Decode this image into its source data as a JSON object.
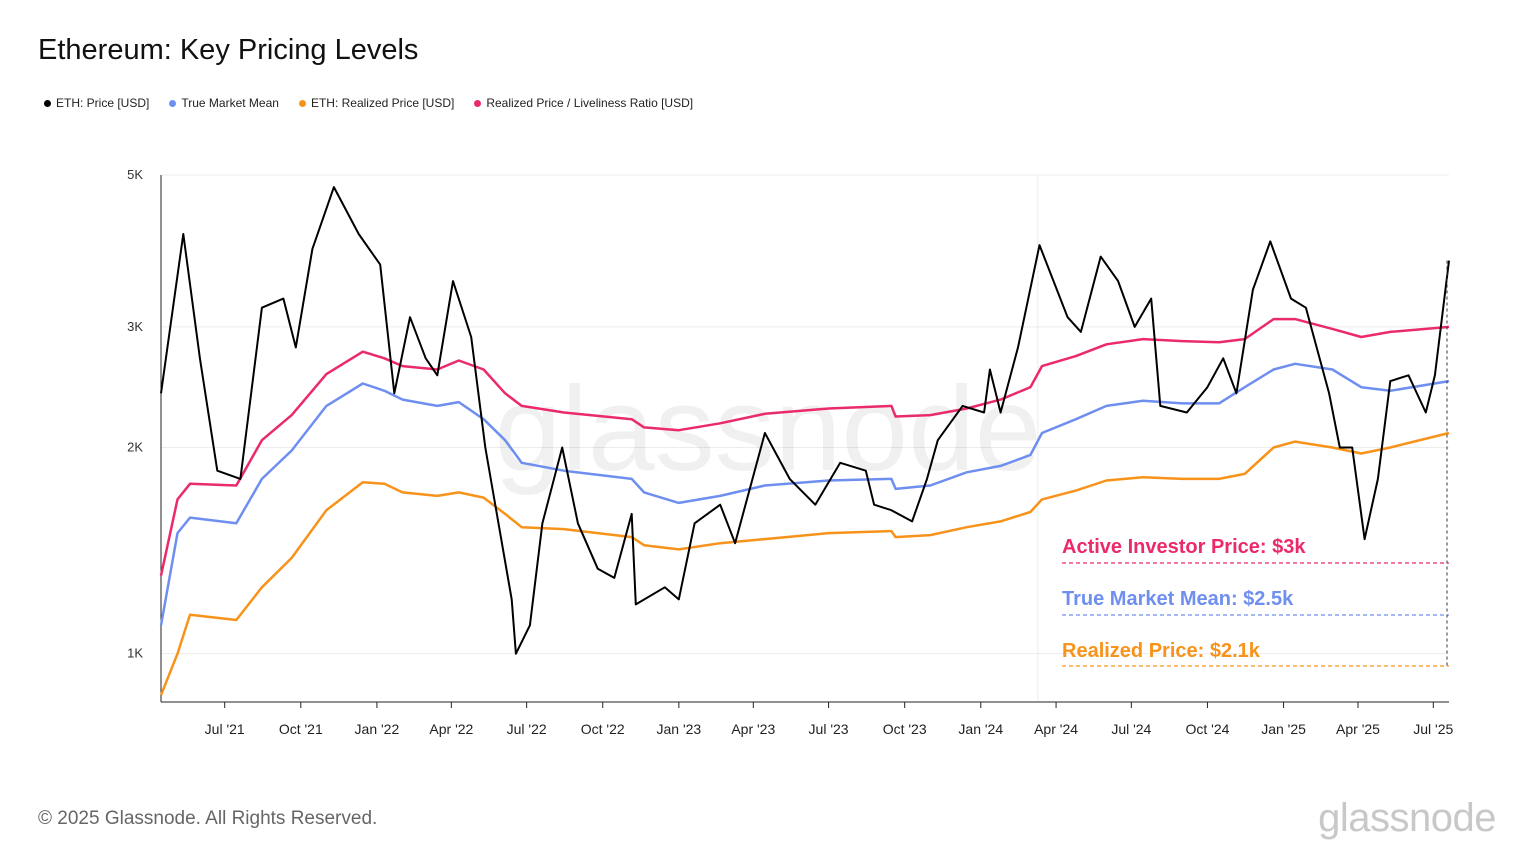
{
  "title": "Ethereum: Key Pricing Levels",
  "legend": [
    {
      "label": "ETH: Price [USD]",
      "color": "#000000"
    },
    {
      "label": "True Market Mean",
      "color": "#6f8ff0"
    },
    {
      "label": "ETH: Realized Price [USD]",
      "color": "#f7931a"
    },
    {
      "label": "Realized Price / Liveliness Ratio [USD]",
      "color": "#eb2a6b"
    }
  ],
  "annotations": {
    "active_investor": {
      "text": "Active Investor Price: $3k",
      "color": "#eb2a6b",
      "value": 3000
    },
    "true_market_mean": {
      "text": "True Market Mean: $2.5k",
      "color": "#6f8ff0",
      "value": 2500
    },
    "realized": {
      "text": "Realized Price: $2.1k",
      "color": "#f7931a",
      "value": 2100
    }
  },
  "watermark": "glassnode",
  "footer": "© 2025 Glassnode. All Rights Reserved.",
  "logo": "glassnode",
  "chart_data": {
    "type": "line",
    "y_scale": "log",
    "ylim": [
      850,
      5000
    ],
    "x_range": [
      "2021-04-15",
      "2025-07-20"
    ],
    "y_ticks": [
      {
        "value": 1000,
        "label": "1K"
      },
      {
        "value": 2000,
        "label": "2K"
      },
      {
        "value": 3000,
        "label": "3K"
      },
      {
        "value": 5000,
        "label": "5K"
      }
    ],
    "x_ticks": [
      {
        "date": "2021-07-01",
        "label": "Jul '21"
      },
      {
        "date": "2021-10-01",
        "label": "Oct '21"
      },
      {
        "date": "2022-01-01",
        "label": "Jan '22"
      },
      {
        "date": "2022-04-01",
        "label": "Apr '22"
      },
      {
        "date": "2022-07-01",
        "label": "Jul '22"
      },
      {
        "date": "2022-10-01",
        "label": "Oct '22"
      },
      {
        "date": "2023-01-01",
        "label": "Jan '23"
      },
      {
        "date": "2023-04-01",
        "label": "Apr '23"
      },
      {
        "date": "2023-07-01",
        "label": "Jul '23"
      },
      {
        "date": "2023-10-01",
        "label": "Oct '23"
      },
      {
        "date": "2024-01-01",
        "label": "Jan '24"
      },
      {
        "date": "2024-04-01",
        "label": "Apr '24"
      },
      {
        "date": "2024-07-01",
        "label": "Jul '24"
      },
      {
        "date": "2024-10-01",
        "label": "Oct '24"
      },
      {
        "date": "2025-01-01",
        "label": "Jan '25"
      },
      {
        "date": "2025-04-01",
        "label": "Apr '25"
      },
      {
        "date": "2025-07-01",
        "label": "Jul '25"
      }
    ],
    "series": [
      {
        "name": "ETH: Price [USD]",
        "color": "#000000",
        "points": [
          [
            "2021-04-15",
            2400
          ],
          [
            "2021-05-12",
            4100
          ],
          [
            "2021-06-01",
            2700
          ],
          [
            "2021-06-22",
            1850
          ],
          [
            "2021-07-20",
            1800
          ],
          [
            "2021-08-15",
            3200
          ],
          [
            "2021-09-10",
            3300
          ],
          [
            "2021-09-25",
            2800
          ],
          [
            "2021-10-15",
            3900
          ],
          [
            "2021-11-10",
            4800
          ],
          [
            "2021-12-10",
            4100
          ],
          [
            "2022-01-05",
            3700
          ],
          [
            "2022-01-22",
            2400
          ],
          [
            "2022-02-10",
            3100
          ],
          [
            "2022-03-01",
            2700
          ],
          [
            "2022-03-15",
            2550
          ],
          [
            "2022-04-03",
            3500
          ],
          [
            "2022-04-25",
            2900
          ],
          [
            "2022-05-12",
            2000
          ],
          [
            "2022-06-13",
            1200
          ],
          [
            "2022-06-18",
            1000
          ],
          [
            "2022-07-05",
            1100
          ],
          [
            "2022-07-20",
            1550
          ],
          [
            "2022-08-13",
            2000
          ],
          [
            "2022-09-01",
            1550
          ],
          [
            "2022-09-25",
            1330
          ],
          [
            "2022-10-15",
            1290
          ],
          [
            "2022-11-05",
            1600
          ],
          [
            "2022-11-10",
            1180
          ],
          [
            "2022-12-15",
            1250
          ],
          [
            "2023-01-01",
            1200
          ],
          [
            "2023-01-20",
            1550
          ],
          [
            "2023-02-20",
            1650
          ],
          [
            "2023-03-10",
            1450
          ],
          [
            "2023-04-15",
            2100
          ],
          [
            "2023-05-15",
            1800
          ],
          [
            "2023-06-15",
            1650
          ],
          [
            "2023-07-15",
            1900
          ],
          [
            "2023-08-15",
            1850
          ],
          [
            "2023-08-25",
            1650
          ],
          [
            "2023-09-15",
            1620
          ],
          [
            "2023-10-10",
            1560
          ],
          [
            "2023-10-28",
            1800
          ],
          [
            "2023-11-10",
            2050
          ],
          [
            "2023-12-10",
            2300
          ],
          [
            "2024-01-05",
            2250
          ],
          [
            "2024-01-12",
            2600
          ],
          [
            "2024-01-25",
            2250
          ],
          [
            "2024-02-15",
            2800
          ],
          [
            "2024-03-12",
            3950
          ],
          [
            "2024-04-15",
            3100
          ],
          [
            "2024-05-01",
            2950
          ],
          [
            "2024-05-25",
            3800
          ],
          [
            "2024-06-15",
            3500
          ],
          [
            "2024-07-05",
            3000
          ],
          [
            "2024-07-25",
            3300
          ],
          [
            "2024-08-05",
            2300
          ],
          [
            "2024-09-06",
            2250
          ],
          [
            "2024-10-01",
            2450
          ],
          [
            "2024-10-20",
            2700
          ],
          [
            "2024-11-05",
            2400
          ],
          [
            "2024-11-25",
            3400
          ],
          [
            "2024-12-16",
            4000
          ],
          [
            "2025-01-10",
            3300
          ],
          [
            "2025-01-28",
            3200
          ],
          [
            "2025-02-25",
            2400
          ],
          [
            "2025-03-10",
            2000
          ],
          [
            "2025-03-25",
            2000
          ],
          [
            "2025-04-09",
            1470
          ],
          [
            "2025-04-25",
            1800
          ],
          [
            "2025-05-10",
            2500
          ],
          [
            "2025-06-01",
            2550
          ],
          [
            "2025-06-22",
            2250
          ],
          [
            "2025-07-03",
            2550
          ],
          [
            "2025-07-20",
            3750
          ]
        ]
      },
      {
        "name": "True Market Mean",
        "color": "#6f8ff0",
        "points": [
          [
            "2021-04-15",
            1100
          ],
          [
            "2021-05-05",
            1500
          ],
          [
            "2021-05-20",
            1580
          ],
          [
            "2021-07-15",
            1550
          ],
          [
            "2021-08-15",
            1800
          ],
          [
            "2021-09-20",
            1980
          ],
          [
            "2021-11-01",
            2300
          ],
          [
            "2021-12-15",
            2480
          ],
          [
            "2022-01-10",
            2420
          ],
          [
            "2022-02-01",
            2350
          ],
          [
            "2022-03-15",
            2300
          ],
          [
            "2022-04-10",
            2330
          ],
          [
            "2022-05-10",
            2200
          ],
          [
            "2022-06-05",
            2050
          ],
          [
            "2022-06-25",
            1900
          ],
          [
            "2022-08-15",
            1850
          ],
          [
            "2022-11-05",
            1800
          ],
          [
            "2022-11-20",
            1720
          ],
          [
            "2023-01-01",
            1660
          ],
          [
            "2023-02-20",
            1700
          ],
          [
            "2023-04-15",
            1760
          ],
          [
            "2023-07-01",
            1790
          ],
          [
            "2023-09-15",
            1800
          ],
          [
            "2023-09-20",
            1740
          ],
          [
            "2023-11-01",
            1760
          ],
          [
            "2023-12-15",
            1840
          ],
          [
            "2024-01-25",
            1880
          ],
          [
            "2024-03-01",
            1950
          ],
          [
            "2024-03-15",
            2100
          ],
          [
            "2024-04-25",
            2200
          ],
          [
            "2024-06-01",
            2300
          ],
          [
            "2024-07-15",
            2340
          ],
          [
            "2024-09-01",
            2320
          ],
          [
            "2024-10-15",
            2320
          ],
          [
            "2024-11-15",
            2450
          ],
          [
            "2024-12-20",
            2600
          ],
          [
            "2025-01-15",
            2650
          ],
          [
            "2025-03-01",
            2600
          ],
          [
            "2025-04-05",
            2450
          ],
          [
            "2025-05-10",
            2420
          ],
          [
            "2025-07-20",
            2500
          ]
        ]
      },
      {
        "name": "ETH: Realized Price [USD]",
        "color": "#f7931a",
        "points": [
          [
            "2021-04-15",
            870
          ],
          [
            "2021-05-05",
            1000
          ],
          [
            "2021-05-20",
            1140
          ],
          [
            "2021-07-15",
            1120
          ],
          [
            "2021-08-15",
            1250
          ],
          [
            "2021-09-20",
            1380
          ],
          [
            "2021-11-01",
            1620
          ],
          [
            "2021-12-15",
            1780
          ],
          [
            "2022-01-10",
            1770
          ],
          [
            "2022-02-01",
            1720
          ],
          [
            "2022-03-15",
            1700
          ],
          [
            "2022-04-10",
            1720
          ],
          [
            "2022-05-10",
            1690
          ],
          [
            "2022-06-05",
            1600
          ],
          [
            "2022-06-25",
            1530
          ],
          [
            "2022-08-15",
            1520
          ],
          [
            "2022-11-05",
            1480
          ],
          [
            "2022-11-20",
            1440
          ],
          [
            "2023-01-01",
            1420
          ],
          [
            "2023-02-20",
            1450
          ],
          [
            "2023-04-15",
            1470
          ],
          [
            "2023-07-01",
            1500
          ],
          [
            "2023-09-15",
            1510
          ],
          [
            "2023-09-20",
            1480
          ],
          [
            "2023-11-01",
            1490
          ],
          [
            "2023-12-15",
            1530
          ],
          [
            "2024-01-25",
            1560
          ],
          [
            "2024-03-01",
            1610
          ],
          [
            "2024-03-15",
            1680
          ],
          [
            "2024-04-25",
            1730
          ],
          [
            "2024-06-01",
            1790
          ],
          [
            "2024-07-15",
            1810
          ],
          [
            "2024-09-01",
            1800
          ],
          [
            "2024-10-15",
            1800
          ],
          [
            "2024-11-15",
            1830
          ],
          [
            "2024-12-20",
            2000
          ],
          [
            "2025-01-15",
            2040
          ],
          [
            "2025-03-01",
            2000
          ],
          [
            "2025-04-05",
            1960
          ],
          [
            "2025-05-10",
            2000
          ],
          [
            "2025-07-20",
            2100
          ]
        ]
      },
      {
        "name": "Realized Price / Liveliness Ratio [USD]",
        "color": "#eb2a6b",
        "points": [
          [
            "2021-04-15",
            1300
          ],
          [
            "2021-05-05",
            1680
          ],
          [
            "2021-05-20",
            1770
          ],
          [
            "2021-07-15",
            1760
          ],
          [
            "2021-08-15",
            2050
          ],
          [
            "2021-09-20",
            2230
          ],
          [
            "2021-11-01",
            2560
          ],
          [
            "2021-12-15",
            2760
          ],
          [
            "2022-01-10",
            2700
          ],
          [
            "2022-02-01",
            2630
          ],
          [
            "2022-03-15",
            2600
          ],
          [
            "2022-04-10",
            2680
          ],
          [
            "2022-05-10",
            2600
          ],
          [
            "2022-06-05",
            2400
          ],
          [
            "2022-06-25",
            2300
          ],
          [
            "2022-08-15",
            2250
          ],
          [
            "2022-11-05",
            2200
          ],
          [
            "2022-11-20",
            2140
          ],
          [
            "2023-01-01",
            2120
          ],
          [
            "2023-02-20",
            2170
          ],
          [
            "2023-04-15",
            2240
          ],
          [
            "2023-07-01",
            2280
          ],
          [
            "2023-09-15",
            2300
          ],
          [
            "2023-09-20",
            2220
          ],
          [
            "2023-11-01",
            2230
          ],
          [
            "2023-12-15",
            2280
          ],
          [
            "2024-01-25",
            2350
          ],
          [
            "2024-03-01",
            2450
          ],
          [
            "2024-03-15",
            2630
          ],
          [
            "2024-04-25",
            2720
          ],
          [
            "2024-06-01",
            2830
          ],
          [
            "2024-07-15",
            2880
          ],
          [
            "2024-09-01",
            2860
          ],
          [
            "2024-10-15",
            2850
          ],
          [
            "2024-11-15",
            2880
          ],
          [
            "2024-12-20",
            3080
          ],
          [
            "2025-01-15",
            3080
          ],
          [
            "2025-03-01",
            2980
          ],
          [
            "2025-04-05",
            2900
          ],
          [
            "2025-05-10",
            2950
          ],
          [
            "2025-07-20",
            3000
          ]
        ]
      }
    ]
  }
}
